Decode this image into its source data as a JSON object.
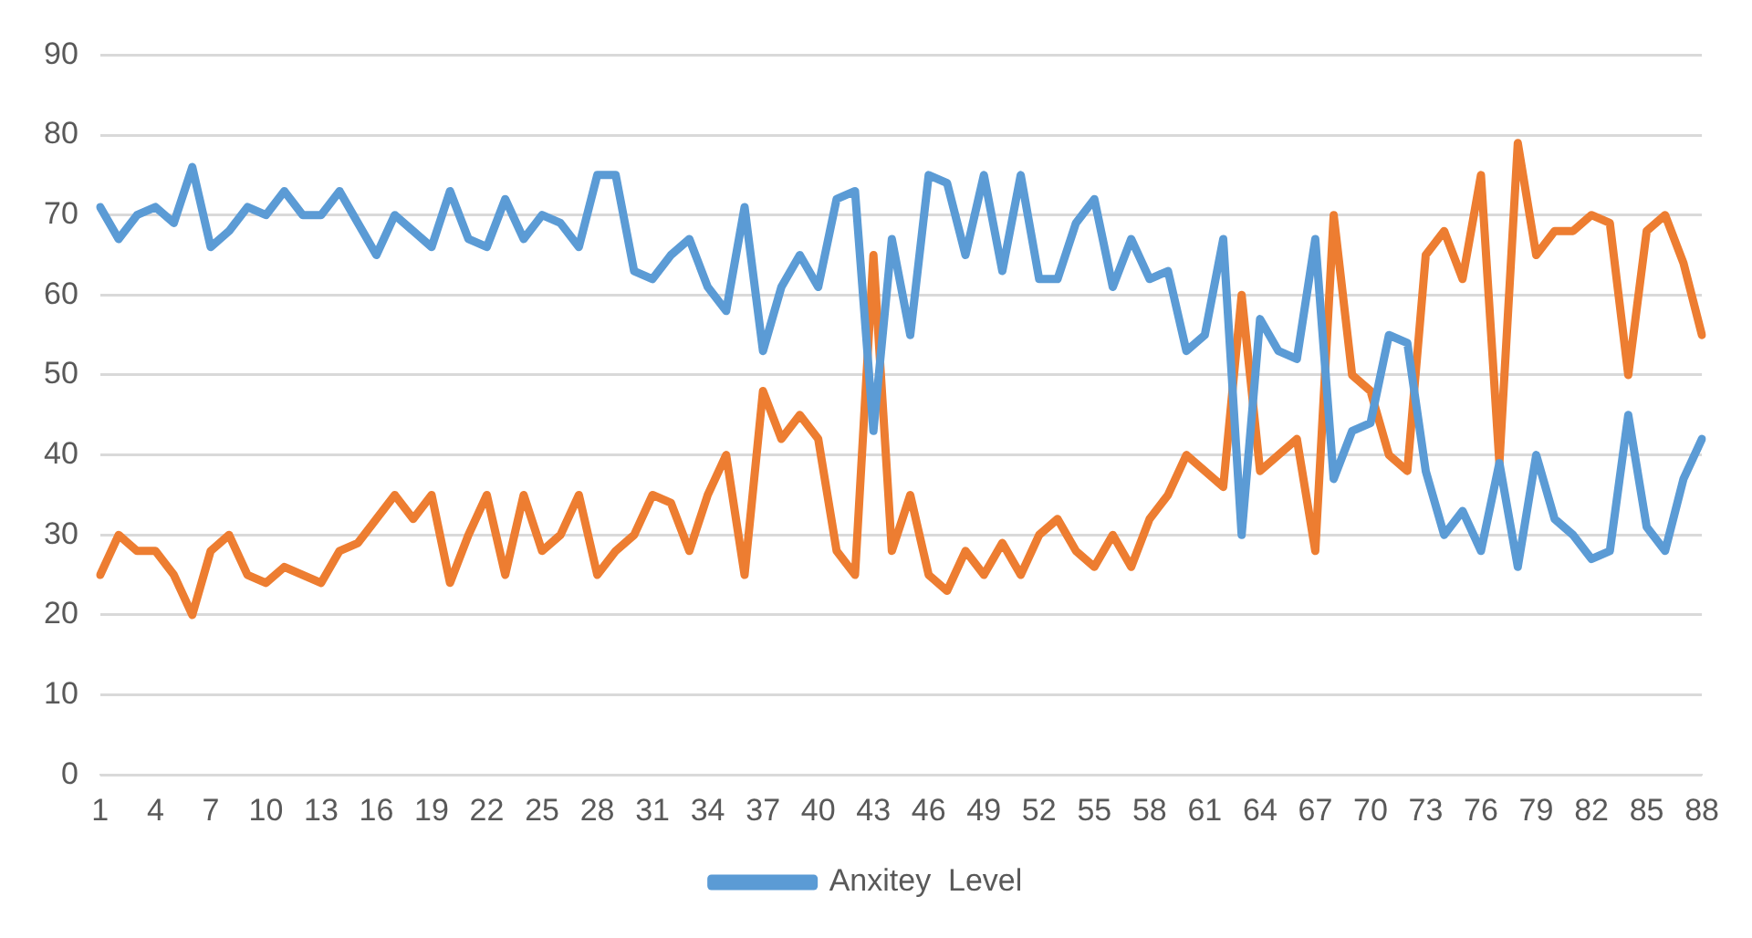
{
  "chart_data": {
    "type": "line",
    "categories": [
      "1",
      null,
      null,
      "4",
      null,
      null,
      "7",
      null,
      null,
      "10",
      null,
      null,
      "13",
      null,
      null,
      "16",
      null,
      null,
      "19",
      null,
      null,
      "22",
      null,
      null,
      "25",
      null,
      null,
      "28",
      null,
      null,
      "31",
      null,
      null,
      "34",
      null,
      null,
      "37",
      null,
      null,
      "40",
      null,
      null,
      "43",
      null,
      null,
      "46",
      null,
      null,
      "49",
      null,
      null,
      "52",
      null,
      null,
      "55",
      null,
      null,
      "58",
      null,
      null,
      "61",
      null,
      null,
      "64",
      null,
      null,
      "67",
      null,
      null,
      "70",
      null,
      null,
      "73",
      null,
      null,
      "76",
      null,
      null,
      "79",
      null,
      null,
      "82",
      null,
      null,
      "85",
      null,
      null,
      "88"
    ],
    "series": [
      {
        "name": "Anxitey  Level",
        "color": "#5b9bd5",
        "values": [
          71,
          67,
          70,
          71,
          69,
          76,
          66,
          68,
          71,
          70,
          73,
          70,
          70,
          73,
          69,
          65,
          70,
          68,
          66,
          73,
          67,
          66,
          72,
          67,
          70,
          69,
          66,
          75,
          75,
          63,
          62,
          65,
          67,
          61,
          58,
          71,
          53,
          61,
          65,
          61,
          72,
          73,
          43,
          67,
          55,
          75,
          74,
          65,
          75,
          63,
          75,
          62,
          62,
          69,
          72,
          61,
          67,
          62,
          63,
          53,
          55,
          67,
          30,
          57,
          53,
          52,
          67,
          37,
          43,
          44,
          55,
          54,
          38,
          30,
          33,
          28,
          39,
          26,
          40,
          32,
          30,
          27,
          28,
          45,
          31,
          28,
          37,
          42
        ]
      },
      {
        "color": "#ed7d31",
        "values": [
          25,
          30,
          28,
          28,
          25,
          20,
          28,
          30,
          25,
          24,
          26,
          25,
          24,
          28,
          29,
          32,
          35,
          32,
          35,
          24,
          30,
          35,
          25,
          35,
          28,
          30,
          35,
          25,
          28,
          30,
          35,
          34,
          28,
          35,
          40,
          25,
          48,
          42,
          45,
          42,
          28,
          25,
          65,
          28,
          35,
          25,
          23,
          28,
          25,
          29,
          25,
          30,
          32,
          28,
          26,
          30,
          26,
          32,
          35,
          40,
          38,
          36,
          60,
          38,
          40,
          42,
          28,
          70,
          50,
          48,
          40,
          38,
          65,
          68,
          62,
          75,
          39,
          79,
          65,
          68,
          68,
          70,
          69,
          50,
          68,
          70,
          64,
          55
        ]
      }
    ],
    "ylim": [
      0,
      90
    ],
    "yticks": [
      0,
      10,
      20,
      30,
      40,
      50,
      60,
      70,
      80,
      90
    ],
    "grid": "y",
    "legend": "bottom",
    "marker": "none",
    "line_style": "solid"
  }
}
